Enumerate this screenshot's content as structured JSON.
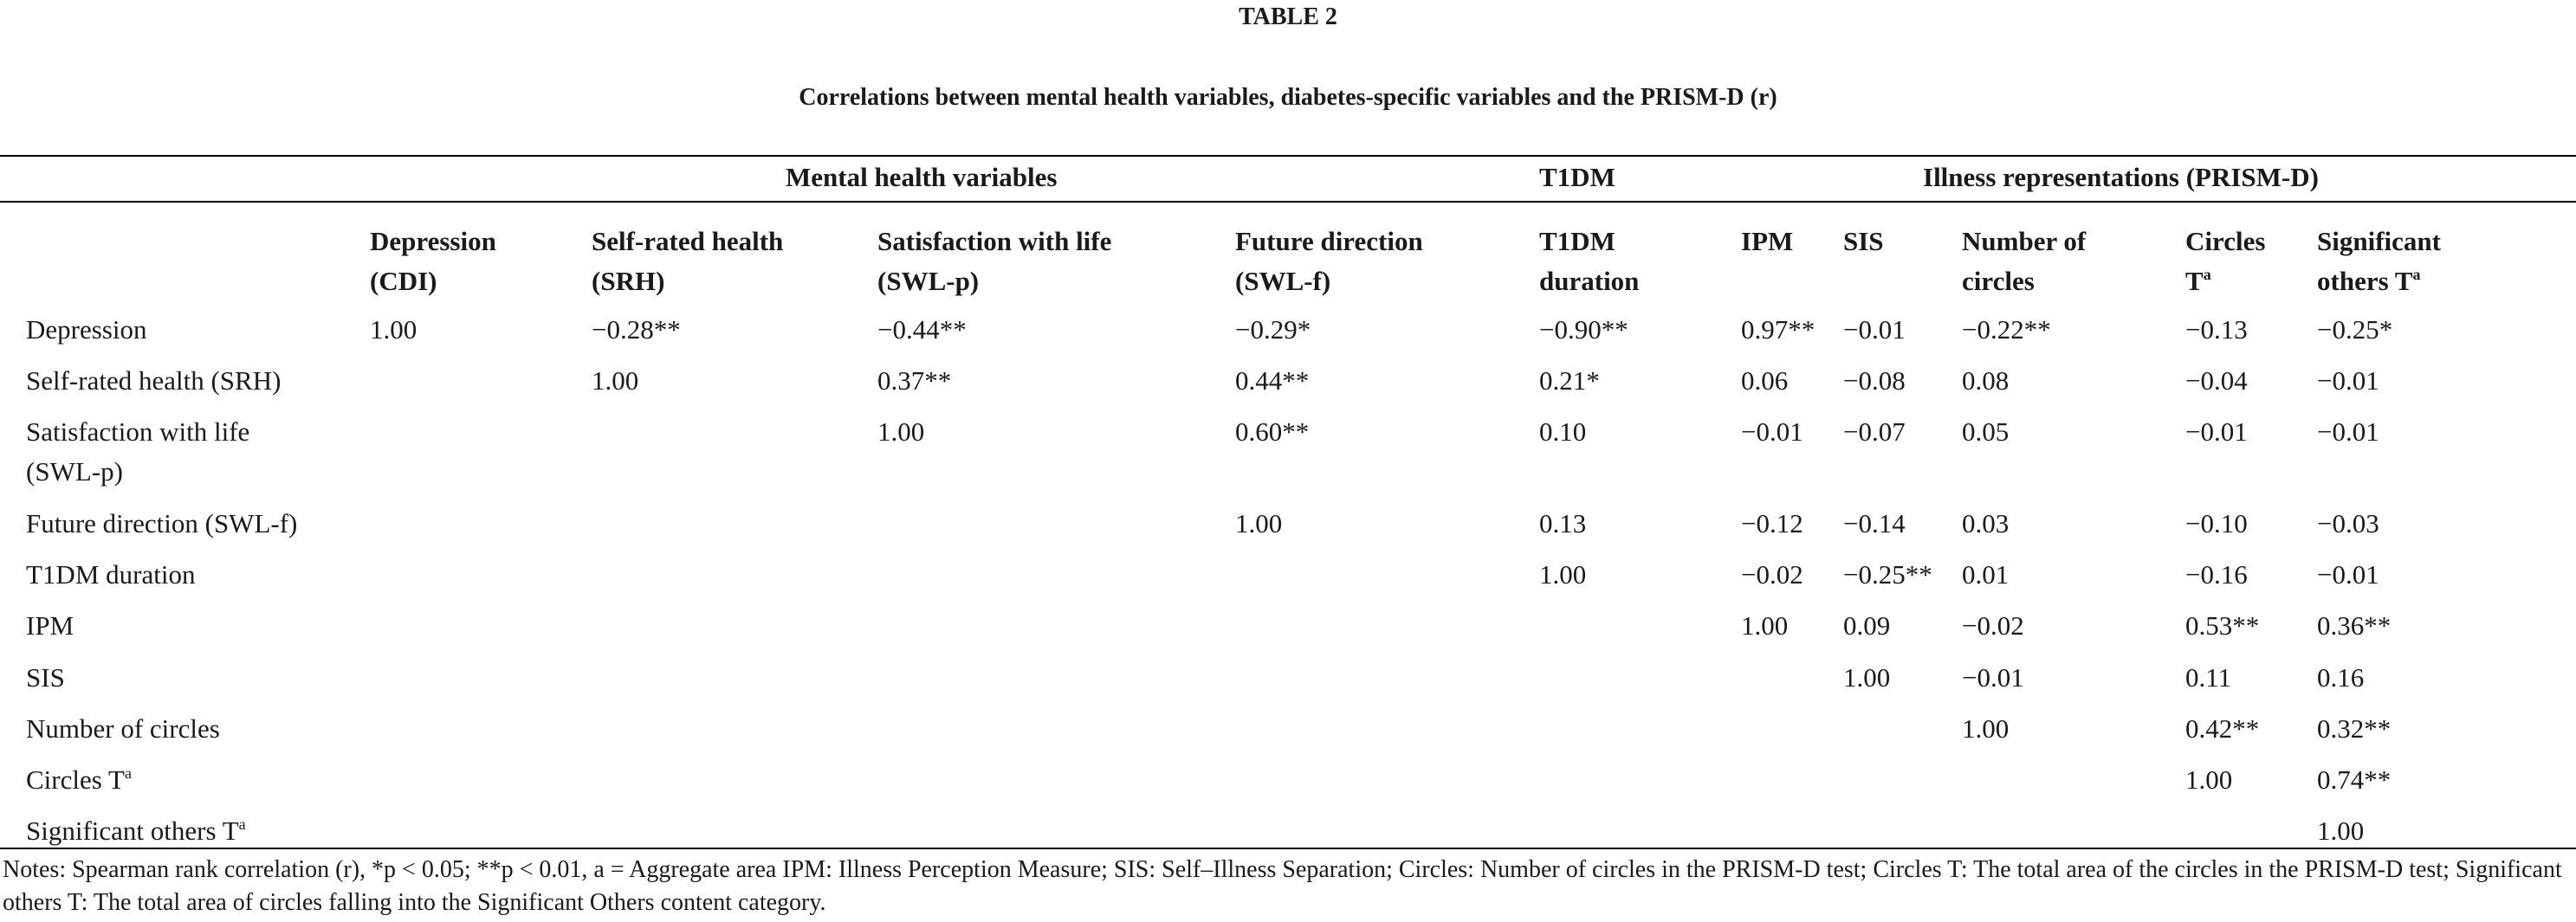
{
  "table": {
    "label": "TABLE 2",
    "caption": "Correlations between mental health variables, diabetes-specific variables and the PRISM-D (r)",
    "groups": [
      "Mental health variables",
      "T1DM",
      "Illness representations (PRISM-D)"
    ],
    "columns": [
      {
        "lines": [
          "Depression",
          "(CDI)"
        ]
      },
      {
        "lines": [
          "Self-rated health",
          "(SRH)"
        ]
      },
      {
        "lines": [
          "Satisfaction with life",
          "(SWL-p)"
        ]
      },
      {
        "lines": [
          "Future direction",
          "(SWL-f)"
        ]
      },
      {
        "lines": [
          "T1DM",
          "duration"
        ]
      },
      {
        "lines": [
          "IPM"
        ]
      },
      {
        "lines": [
          "SIS"
        ]
      },
      {
        "lines": [
          "Number of",
          "circles"
        ]
      },
      {
        "lines": [
          "Circles",
          "T"
        ],
        "sup": "a"
      },
      {
        "lines": [
          "Significant",
          "others T"
        ],
        "sup": "a"
      }
    ],
    "rows": [
      {
        "label": [
          "Depression"
        ],
        "cells": [
          "1.00",
          "−0.28**",
          "−0.44**",
          "−0.29*",
          "−0.90**",
          "0.97**",
          "−0.01",
          "−0.22**",
          "−0.13",
          "−0.25*"
        ]
      },
      {
        "label": [
          "Self-rated health (SRH)"
        ],
        "cells": [
          "",
          "1.00",
          "0.37**",
          "0.44**",
          "0.21*",
          "0.06",
          "−0.08",
          "0.08",
          "−0.04",
          "−0.01"
        ]
      },
      {
        "label": [
          "Satisfaction with life",
          "(SWL-p)"
        ],
        "cells": [
          "",
          "",
          "1.00",
          "0.60**",
          "0.10",
          "−0.01",
          "−0.07",
          "0.05",
          "−0.01",
          "−0.01"
        ]
      },
      {
        "label": [
          "Future direction (SWL-f)"
        ],
        "cells": [
          "",
          "",
          "",
          "1.00",
          "0.13",
          "−0.12",
          "−0.14",
          "0.03",
          "−0.10",
          "−0.03"
        ]
      },
      {
        "label": [
          "T1DM duration"
        ],
        "cells": [
          "",
          "",
          "",
          "",
          "1.00",
          "−0.02",
          "−0.25**",
          "0.01",
          "−0.16",
          "−0.01"
        ]
      },
      {
        "label": [
          "IPM"
        ],
        "cells": [
          "",
          "",
          "",
          "",
          "",
          "1.00",
          "0.09",
          "−0.02",
          "0.53**",
          "0.36**"
        ]
      },
      {
        "label": [
          "SIS"
        ],
        "cells": [
          "",
          "",
          "",
          "",
          "",
          "",
          "1.00",
          "−0.01",
          "0.11",
          "0.16"
        ]
      },
      {
        "label": [
          "Number of circles"
        ],
        "cells": [
          "",
          "",
          "",
          "",
          "",
          "",
          "",
          "1.00",
          "0.42**",
          "0.32**"
        ]
      },
      {
        "label": [
          "Circles T"
        ],
        "sup": "a",
        "cells": [
          "",
          "",
          "",
          "",
          "",
          "",
          "",
          "",
          "1.00",
          "0.74**"
        ]
      },
      {
        "label": [
          "Significant others T"
        ],
        "sup": "a",
        "cells": [
          "",
          "",
          "",
          "",
          "",
          "",
          "",
          "",
          "",
          "1.00"
        ]
      }
    ],
    "notes": "Notes: Spearman rank correlation (r), *p < 0.05; **p < 0.01, a = Aggregate area IPM: Illness Perception Measure; SIS: Self–Illness Separation; Circles: Number of circles in the PRISM-D test; Circles T: The total area of the circles in the PRISM-D test; Significant others T: The total area of circles falling into the Significant Others content category."
  }
}
